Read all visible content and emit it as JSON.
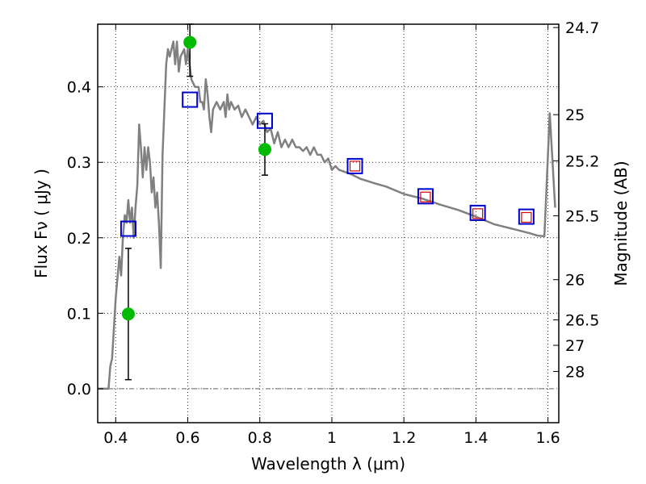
{
  "chart_data": {
    "type": "scatter",
    "title": "",
    "xlabel": "Wavelength  λ (μm)",
    "ylabel": "Flux  Fν  ( μJy )",
    "y2label": "Magnitude (AB)",
    "xlim": [
      0.35,
      1.63
    ],
    "ylim": [
      -0.045,
      0.483
    ],
    "grid": true,
    "x_ticks": [
      0.4,
      0.6,
      0.8,
      1.0,
      1.2,
      1.4,
      1.6
    ],
    "x_tick_labels": [
      "0.4",
      "0.6",
      "0.8",
      "1",
      "1.2",
      "1.4",
      "1.6"
    ],
    "y_ticks": [
      0.0,
      0.1,
      0.2,
      0.3,
      0.4
    ],
    "y_tick_labels": [
      "0.0",
      "0.1",
      "0.2",
      "0.3",
      "0.4"
    ],
    "magnitude_ticks": [
      {
        "label": "24.7",
        "flux": 0.4786
      },
      {
        "label": "25",
        "flux": 0.3631
      },
      {
        "label": "25.2",
        "flux": 0.302
      },
      {
        "label": "25.5",
        "flux": 0.2291
      },
      {
        "label": "26",
        "flux": 0.1445
      },
      {
        "label": "26.5",
        "flux": 0.0912
      },
      {
        "label": "27",
        "flux": 0.0575
      },
      {
        "label": "28",
        "flux": 0.0229
      }
    ],
    "series": [
      {
        "kind": "line",
        "color": "#808080",
        "points": [
          [
            0.35,
            0.0
          ],
          [
            0.38,
            0.0
          ],
          [
            0.385,
            0.03
          ],
          [
            0.39,
            0.04
          ],
          [
            0.4,
            0.12
          ],
          [
            0.41,
            0.175
          ],
          [
            0.415,
            0.15
          ],
          [
            0.42,
            0.2
          ],
          [
            0.425,
            0.23
          ],
          [
            0.43,
            0.22
          ],
          [
            0.435,
            0.25
          ],
          [
            0.44,
            0.22
          ],
          [
            0.445,
            0.24
          ],
          [
            0.45,
            0.2
          ],
          [
            0.455,
            0.24
          ],
          [
            0.46,
            0.27
          ],
          [
            0.465,
            0.35
          ],
          [
            0.47,
            0.32
          ],
          [
            0.475,
            0.28
          ],
          [
            0.48,
            0.32
          ],
          [
            0.485,
            0.29
          ],
          [
            0.49,
            0.32
          ],
          [
            0.495,
            0.3
          ],
          [
            0.5,
            0.26
          ],
          [
            0.505,
            0.28
          ],
          [
            0.51,
            0.24
          ],
          [
            0.515,
            0.26
          ],
          [
            0.52,
            0.22
          ],
          [
            0.525,
            0.16
          ],
          [
            0.53,
            0.31
          ],
          [
            0.54,
            0.43
          ],
          [
            0.545,
            0.45
          ],
          [
            0.55,
            0.44
          ],
          [
            0.56,
            0.46
          ],
          [
            0.565,
            0.43
          ],
          [
            0.57,
            0.46
          ],
          [
            0.575,
            0.42
          ],
          [
            0.58,
            0.44
          ],
          [
            0.59,
            0.45
          ],
          [
            0.595,
            0.43
          ],
          [
            0.6,
            0.45
          ],
          [
            0.61,
            0.41
          ],
          [
            0.62,
            0.4
          ],
          [
            0.63,
            0.4
          ],
          [
            0.635,
            0.38
          ],
          [
            0.64,
            0.38
          ],
          [
            0.645,
            0.37
          ],
          [
            0.65,
            0.41
          ],
          [
            0.655,
            0.39
          ],
          [
            0.66,
            0.36
          ],
          [
            0.665,
            0.34
          ],
          [
            0.67,
            0.37
          ],
          [
            0.68,
            0.38
          ],
          [
            0.69,
            0.37
          ],
          [
            0.7,
            0.38
          ],
          [
            0.705,
            0.36
          ],
          [
            0.71,
            0.39
          ],
          [
            0.715,
            0.37
          ],
          [
            0.72,
            0.38
          ],
          [
            0.73,
            0.37
          ],
          [
            0.74,
            0.375
          ],
          [
            0.75,
            0.36
          ],
          [
            0.76,
            0.37
          ],
          [
            0.77,
            0.36
          ],
          [
            0.78,
            0.35
          ],
          [
            0.79,
            0.36
          ],
          [
            0.8,
            0.35
          ],
          [
            0.81,
            0.355
          ],
          [
            0.82,
            0.34
          ],
          [
            0.83,
            0.345
          ],
          [
            0.84,
            0.325
          ],
          [
            0.85,
            0.34
          ],
          [
            0.86,
            0.32
          ],
          [
            0.87,
            0.33
          ],
          [
            0.88,
            0.32
          ],
          [
            0.89,
            0.33
          ],
          [
            0.9,
            0.32
          ],
          [
            0.91,
            0.32
          ],
          [
            0.92,
            0.315
          ],
          [
            0.93,
            0.32
          ],
          [
            0.94,
            0.31
          ],
          [
            0.95,
            0.32
          ],
          [
            0.96,
            0.31
          ],
          [
            0.97,
            0.31
          ],
          [
            0.98,
            0.3
          ],
          [
            0.99,
            0.305
          ],
          [
            1.0,
            0.29
          ],
          [
            1.01,
            0.295
          ],
          [
            1.02,
            0.29
          ],
          [
            1.05,
            0.285
          ],
          [
            1.08,
            0.278
          ],
          [
            1.1,
            0.275
          ],
          [
            1.12,
            0.272
          ],
          [
            1.15,
            0.268
          ],
          [
            1.2,
            0.258
          ],
          [
            1.25,
            0.252
          ],
          [
            1.3,
            0.244
          ],
          [
            1.35,
            0.237
          ],
          [
            1.4,
            0.228
          ],
          [
            1.45,
            0.218
          ],
          [
            1.5,
            0.212
          ],
          [
            1.55,
            0.206
          ],
          [
            1.57,
            0.203
          ],
          [
            1.59,
            0.202
          ],
          [
            1.605,
            0.365
          ],
          [
            1.62,
            0.24
          ]
        ]
      },
      {
        "kind": "markers",
        "marker": "circle",
        "color": "#00bb00",
        "points": [
          {
            "x": 0.435,
            "y": 0.099,
            "err": 0.087
          },
          {
            "x": 0.606,
            "y": 0.459,
            "err": 0.045
          },
          {
            "x": 0.814,
            "y": 0.317,
            "err": 0.034
          }
        ]
      },
      {
        "kind": "markers",
        "marker": "square",
        "color": "#0000cc",
        "points": [
          {
            "x": 0.435,
            "y": 0.212
          },
          {
            "x": 0.606,
            "y": 0.383
          },
          {
            "x": 0.814,
            "y": 0.355
          },
          {
            "x": 1.064,
            "y": 0.295
          },
          {
            "x": 1.26,
            "y": 0.255
          },
          {
            "x": 1.405,
            "y": 0.233
          },
          {
            "x": 1.54,
            "y": 0.228
          }
        ]
      },
      {
        "kind": "markers",
        "marker": "square-small",
        "color": "#dd0000",
        "points": [
          {
            "x": 1.064,
            "y": 0.295
          },
          {
            "x": 1.26,
            "y": 0.254
          },
          {
            "x": 1.405,
            "y": 0.232
          },
          {
            "x": 1.54,
            "y": 0.227
          }
        ]
      }
    ],
    "zero_line": {
      "color": "#666666",
      "style": "dashdot"
    }
  }
}
